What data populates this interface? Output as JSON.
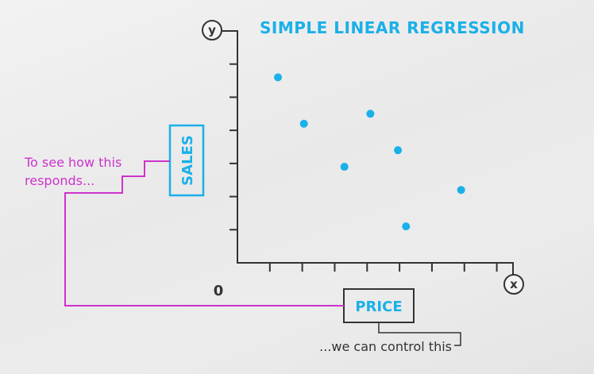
{
  "colors": {
    "accent": "#1ab0e8",
    "axis": "#333333",
    "annotation": "#cc33cc",
    "text_dark": "#333333",
    "background": "#ececec"
  },
  "chart_data": {
    "type": "scatter",
    "title": "SIMPLE LINEAR REGRESSION",
    "ylabel": "SALES",
    "xlabel": "PRICE",
    "y_axis_symbol": "y",
    "x_axis_symbol": "x",
    "origin_label": "0",
    "xlim": [
      0,
      8.5
    ],
    "ylim": [
      0,
      7
    ],
    "grid": false,
    "points": [
      {
        "x": 1.25,
        "y": 5.6
      },
      {
        "x": 2.05,
        "y": 4.2
      },
      {
        "x": 3.3,
        "y": 2.9
      },
      {
        "x": 4.1,
        "y": 4.5
      },
      {
        "x": 4.95,
        "y": 3.4
      },
      {
        "x": 5.2,
        "y": 1.1
      },
      {
        "x": 6.9,
        "y": 2.2
      }
    ]
  },
  "annotations": {
    "response_line1": "To see how this",
    "response_line2": "responds...",
    "control": "...we can control this"
  }
}
